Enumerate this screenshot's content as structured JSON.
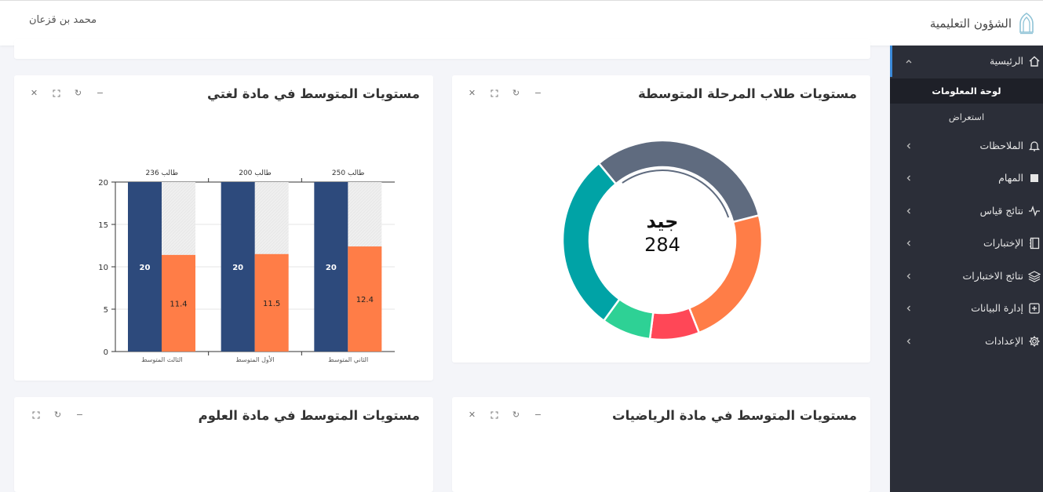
{
  "header": {
    "app_name": "الشؤون التعليمية",
    "user_name": "محمد بن قزعان"
  },
  "sidebar": {
    "home": {
      "label": "الرئيسية"
    },
    "home_sub": [
      {
        "label": "لوحة المعلومات"
      },
      {
        "label": "استعراض"
      }
    ],
    "items": [
      {
        "label": "الملاحظات",
        "icon": "bell-icon"
      },
      {
        "label": "المهام",
        "icon": "task-square-icon"
      },
      {
        "label": "نتائج قياس",
        "icon": "pulse-icon"
      },
      {
        "label": "الإختبارات",
        "icon": "notebook-icon"
      },
      {
        "label": "نتائج الاختبارات",
        "icon": "layers-icon"
      },
      {
        "label": "إدارة البيانات",
        "icon": "plus-square-icon"
      },
      {
        "label": "الإعدادات",
        "icon": "gear-icon"
      }
    ]
  },
  "cards": {
    "students_levels": {
      "title": "مستويات طلاب المرحلة المتوسطة"
    },
    "language_levels": {
      "title": "مستويات المتوسط في مادة لغتي"
    },
    "math_levels": {
      "title": "مستويات المتوسط في مادة الرياضيات"
    },
    "science_levels": {
      "title": "مستويات المتوسط في مادة العلوم"
    }
  },
  "chart_data": [
    {
      "type": "pie",
      "variant": "donut",
      "center_label": "جيد",
      "center_value": "284",
      "slices": [
        {
          "name": "slate",
          "value": 32,
          "color": "#5f6b7f"
        },
        {
          "name": "orange",
          "value": 23,
          "color": "#ff7d47"
        },
        {
          "name": "red",
          "value": 8,
          "color": "#ff4757"
        },
        {
          "name": "green",
          "value": 8,
          "color": "#2ed195"
        },
        {
          "name": "teal",
          "value": 29,
          "color": "#00a3a6"
        }
      ]
    },
    {
      "type": "bar",
      "categories": [
        "الثالث المتوسط",
        "الأول المتوسط",
        "الثاني المتوسط"
      ],
      "top_labels": [
        "236 طالب",
        "200 طالب",
        "250 طالب"
      ],
      "series": [
        {
          "name": "max",
          "values": [
            20,
            20,
            20
          ],
          "color": "#2d4a7c",
          "labels": [
            "20",
            "20",
            "20"
          ]
        },
        {
          "name": "average",
          "values": [
            11.4,
            11.5,
            12.4
          ],
          "color": "#ff7d47",
          "labels": [
            "11.4",
            "11.5",
            "12.4"
          ]
        }
      ],
      "y_ticks": [
        "0",
        "5",
        "10",
        "15",
        "20"
      ],
      "ylim": [
        0,
        20
      ],
      "grid": true
    }
  ]
}
